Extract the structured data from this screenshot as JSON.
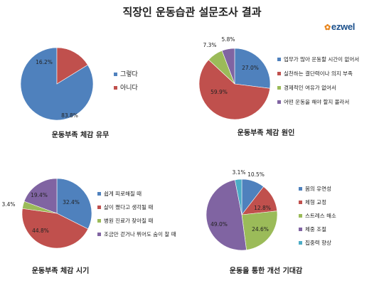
{
  "page": {
    "title": "직장인 운동습관 설문조사 결과"
  },
  "brand": {
    "logo_text": "ezwel"
  },
  "colors": {
    "blue": "#4f81bd",
    "red": "#c0504d",
    "green": "#9bbb59",
    "purple": "#8064a2",
    "cyan": "#4bacc6"
  },
  "chart_data": [
    {
      "type": "pie",
      "title": "운동부족 체감 유무",
      "categories": [
        "그렇다",
        "아니다"
      ],
      "values": [
        83.8,
        16.2
      ],
      "labels": [
        "83.8%",
        "16.2%"
      ],
      "legend": "right"
    },
    {
      "type": "pie",
      "title": "운동부족 체감 원인",
      "categories": [
        "업무가 많아 운동할 시간이 없어서",
        "실천하는 결단력이나 의지 부족",
        "경제적인 여유가 없어서",
        "어떤 운동을 해야 할지 몰라서"
      ],
      "values": [
        27.0,
        59.9,
        7.3,
        5.8
      ],
      "labels": [
        "27.0%",
        "59.9%",
        "7.3%",
        "5.8%"
      ],
      "legend": "right"
    },
    {
      "type": "pie",
      "title": "운동부족 체감 시기",
      "categories": [
        "쉽게 피로해질 때",
        "살이 쪘다고 생각될 때",
        "병원 진료가 잦아질 때",
        "조금만 걷거나 뛰어도 숨이 찰 때"
      ],
      "values": [
        32.4,
        44.8,
        3.4,
        19.4
      ],
      "labels": [
        "32.4%",
        "44.8%",
        "3.4%",
        "19.4%"
      ],
      "legend": "right"
    },
    {
      "type": "pie",
      "title": "운동을 통한 개선 기대감",
      "categories": [
        "몸의 유연성",
        "체형 교정",
        "스트레스 해소",
        "체중 조절",
        "집중력 향상"
      ],
      "values": [
        10.5,
        12.8,
        24.6,
        49.0,
        3.1
      ],
      "labels": [
        "10.5%",
        "12.8%",
        "24.6%",
        "49.0%",
        "3.1%"
      ],
      "legend": "right"
    }
  ]
}
